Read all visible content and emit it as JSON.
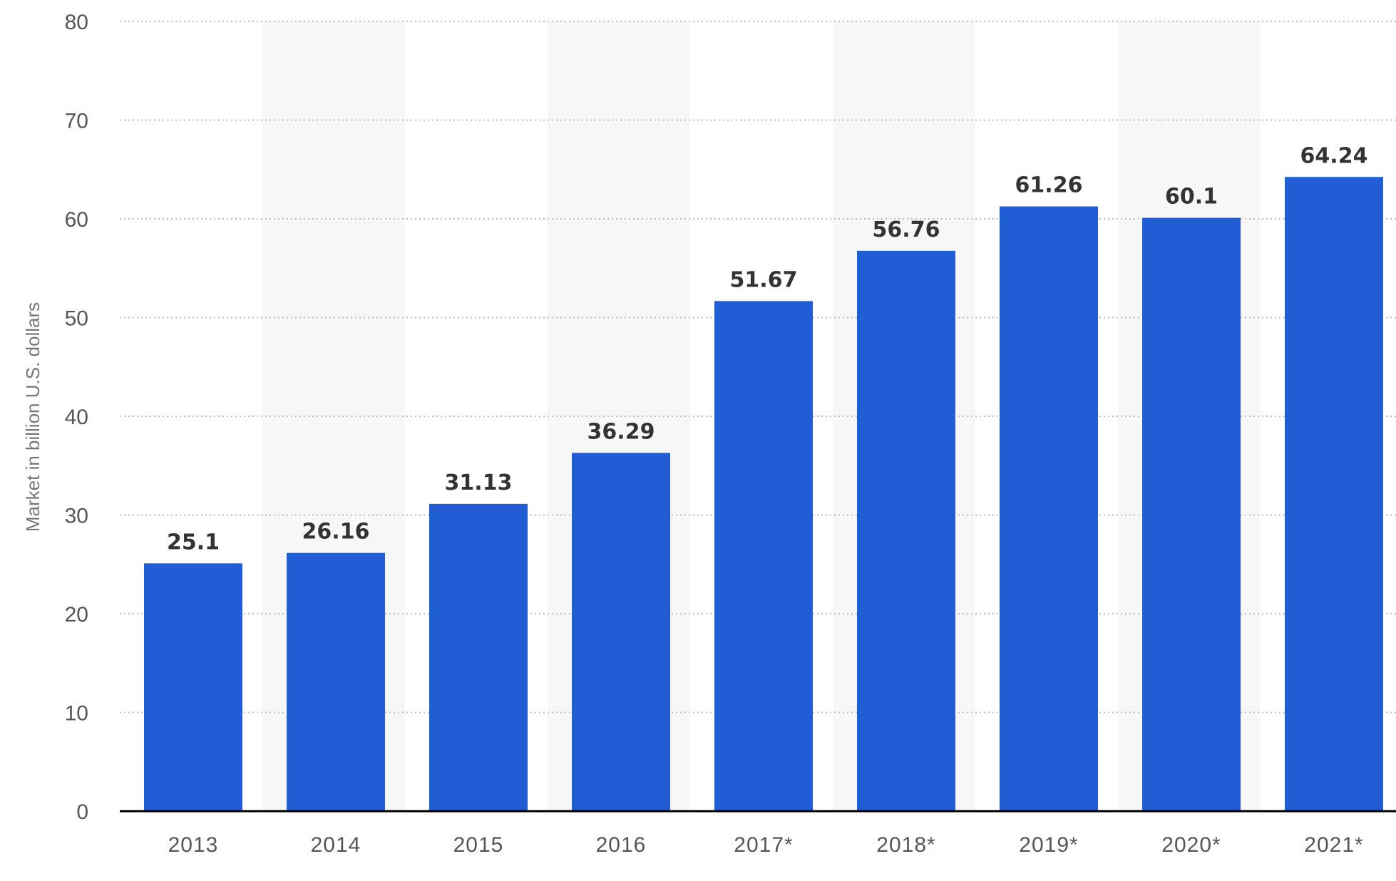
{
  "chart_data": {
    "type": "bar",
    "title": "",
    "xlabel": "",
    "ylabel": "Market in billion U.S. dollars",
    "categories": [
      "2013",
      "2014",
      "2015",
      "2016",
      "2017*",
      "2018*",
      "2019*",
      "2020*",
      "2021*"
    ],
    "values": [
      25.1,
      26.16,
      31.13,
      36.29,
      51.67,
      56.76,
      61.26,
      60.1,
      64.24
    ],
    "value_labels": [
      "25.1",
      "26.16",
      "31.13",
      "36.29",
      "51.67",
      "56.76",
      "61.26",
      "60.1",
      "64.24"
    ],
    "ylim": [
      0,
      80
    ],
    "yticks": [
      0,
      10,
      20,
      30,
      40,
      50,
      60,
      70,
      80
    ],
    "grid": true,
    "legend": "none",
    "colors": {
      "bar": "#215ed6",
      "band": "#f7f7f7",
      "grid": "#bdbdbd",
      "axis": "#000000",
      "tick_text": "#555555",
      "value_text": "#333333"
    }
  }
}
